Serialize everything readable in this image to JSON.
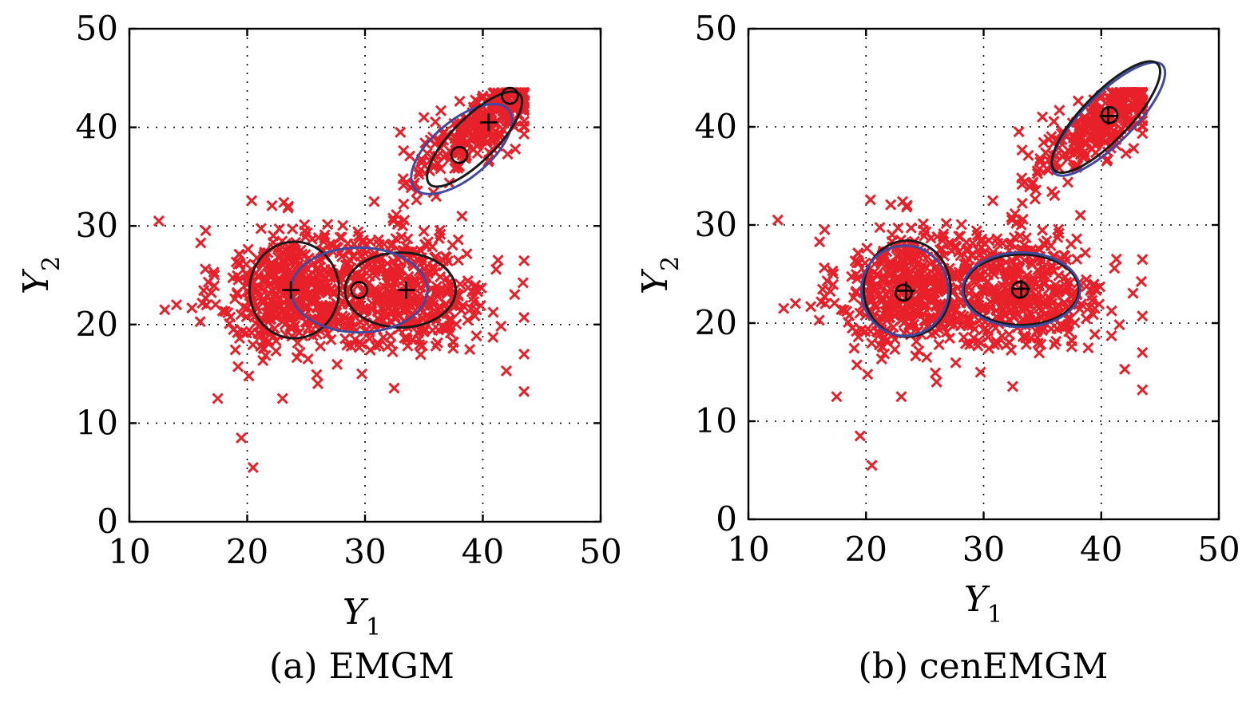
{
  "colors": {
    "points": "#e8202a",
    "ellipse_black": "#1a1a1a",
    "ellipse_blue": "#3f4aa0",
    "markers": "#000000"
  },
  "chart_data": [
    {
      "type": "scatter",
      "caption": "(a) EMGM",
      "title": "",
      "xlabel": "Y",
      "xlabel_sub": "1",
      "ylabel": "Y",
      "ylabel_sub": "2",
      "xlim": [
        10,
        50
      ],
      "ylim": [
        0,
        50
      ],
      "xticks": [
        10,
        20,
        30,
        40,
        50
      ],
      "yticks": [
        0,
        10,
        20,
        30,
        40,
        50
      ],
      "grid": true,
      "censoring_limit": [
        43.5,
        43.5
      ],
      "outliers": [
        [
          12.5,
          30.5
        ],
        [
          13,
          21.5
        ],
        [
          14,
          22
        ],
        [
          19.5,
          8.5
        ],
        [
          20.5,
          5.5
        ],
        [
          17.5,
          12.5
        ],
        [
          43.5,
          13.2
        ],
        [
          43.5,
          17
        ],
        [
          42,
          15.3
        ],
        [
          26,
          14
        ],
        [
          23,
          12.5
        ],
        [
          38,
          37.5
        ],
        [
          35,
          41
        ],
        [
          40,
          43
        ],
        [
          33,
          39.5
        ]
      ],
      "ellipses": [
        {
          "color": "black",
          "cx": 24,
          "cy": 23.5,
          "rx": 3.8,
          "ry": 4.9,
          "angle": 0
        },
        {
          "color": "black",
          "cx": 33,
          "cy": 23.5,
          "rx": 4.7,
          "ry": 3.8,
          "angle": 0
        },
        {
          "color": "blue",
          "cx": 29.5,
          "cy": 23.5,
          "rx": 5.8,
          "ry": 4.3,
          "angle": 0
        },
        {
          "color": "blue",
          "cx": 38.2,
          "cy": 37.8,
          "rx": 5.2,
          "ry": 2.9,
          "angle": 40
        },
        {
          "color": "black",
          "cx": 39.3,
          "cy": 38.8,
          "rx": 5.4,
          "ry": 2.2,
          "angle": 45
        }
      ],
      "centers_plus": [
        [
          23.7,
          23.5
        ],
        [
          33.5,
          23.5
        ],
        [
          40.5,
          40.5
        ]
      ],
      "centers_circle": [
        [
          29.5,
          23.5
        ],
        [
          38,
          37.2
        ],
        [
          42.3,
          43.2
        ]
      ]
    },
    {
      "type": "scatter",
      "caption": "(b) cenEMGM",
      "title": "",
      "xlabel": "Y",
      "xlabel_sub": "1",
      "ylabel": "Y",
      "ylabel_sub": "2",
      "xlim": [
        10,
        50
      ],
      "ylim": [
        0,
        50
      ],
      "xticks": [
        10,
        20,
        30,
        40,
        50
      ],
      "yticks": [
        0,
        10,
        20,
        30,
        40,
        50
      ],
      "grid": true,
      "censoring_limit": [
        43.5,
        43.5
      ],
      "outliers": [
        [
          12.5,
          30.5
        ],
        [
          13,
          21.5
        ],
        [
          14,
          22
        ],
        [
          19.5,
          8.5
        ],
        [
          20.5,
          5.5
        ],
        [
          17.5,
          12.5
        ],
        [
          43.5,
          13.2
        ],
        [
          43.5,
          17
        ],
        [
          42,
          15.3
        ],
        [
          26,
          14
        ],
        [
          23,
          12.5
        ],
        [
          35,
          41
        ],
        [
          33,
          39.5
        ]
      ],
      "ellipses": [
        {
          "color": "black",
          "cx": 23.5,
          "cy": 23.5,
          "rx": 3.7,
          "ry": 4.9,
          "angle": 0
        },
        {
          "color": "blue",
          "cx": 23.3,
          "cy": 23.3,
          "rx": 3.7,
          "ry": 4.6,
          "angle": 0
        },
        {
          "color": "black",
          "cx": 33.2,
          "cy": 23.4,
          "rx": 4.9,
          "ry": 3.6,
          "angle": 0
        },
        {
          "color": "blue",
          "cx": 33.2,
          "cy": 23.4,
          "rx": 5.0,
          "ry": 3.8,
          "angle": 0
        },
        {
          "color": "blue",
          "cx": 40.6,
          "cy": 40.8,
          "rx": 6.5,
          "ry": 2.5,
          "angle": 45
        },
        {
          "color": "black",
          "cx": 40.4,
          "cy": 41.0,
          "rx": 6.3,
          "ry": 2.4,
          "angle": 46
        }
      ],
      "centers_plus": [
        [
          23.4,
          23.3
        ],
        [
          33.2,
          23.5
        ],
        [
          40.6,
          41.1
        ]
      ],
      "centers_circle": [
        [
          23.2,
          23.1
        ],
        [
          33.1,
          23.4
        ],
        [
          40.7,
          41.2
        ]
      ]
    }
  ]
}
